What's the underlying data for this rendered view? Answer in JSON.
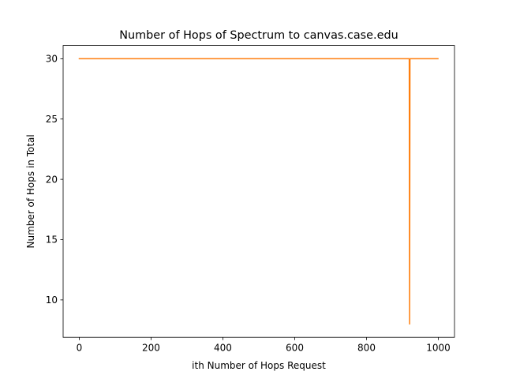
{
  "chart_data": {
    "type": "line",
    "title": "Number of Hops of Spectrum to canvas.case.edu",
    "xlabel": "ith Number of Hops Request",
    "ylabel": "Number of Hops in Total",
    "xlim": [
      -45,
      1045
    ],
    "ylim": [
      6.9,
      31.1
    ],
    "x_ticks": [
      0,
      200,
      400,
      600,
      800,
      1000
    ],
    "y_ticks": [
      10,
      15,
      20,
      25,
      30
    ],
    "grid": false,
    "series": [
      {
        "color": "#ff7f0e",
        "x": [
          0,
          919,
          920,
          921,
          999
        ],
        "y": [
          30,
          30,
          8,
          30,
          30
        ]
      }
    ]
  }
}
